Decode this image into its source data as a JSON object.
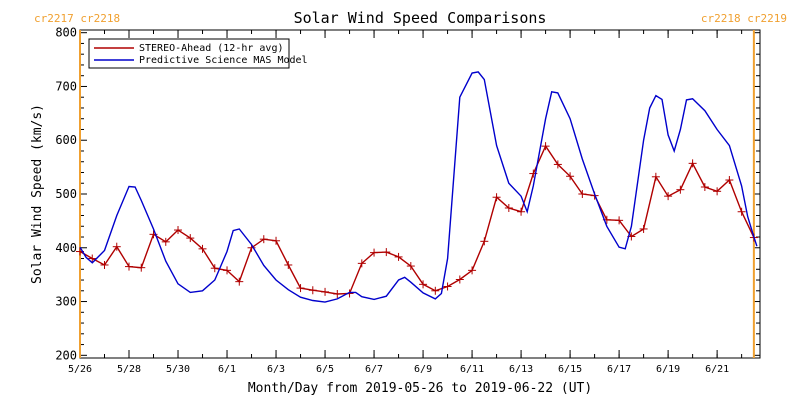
{
  "chart_data": {
    "type": "line",
    "title": "Solar Wind Speed Comparisons",
    "xlabel": "Month/Day from 2019-05-26 to 2019-06-22 (UT)",
    "ylabel": "Solar Wind Speed (km/s)",
    "xlim": [
      "2019-05-26",
      "2019-06-22T18:00"
    ],
    "ylim": [
      195,
      805
    ],
    "y_ticks": [
      200,
      300,
      400,
      500,
      600,
      700,
      800
    ],
    "x_ticks": [
      {
        "date": "2019-05-26",
        "label": "5/26"
      },
      {
        "date": "2019-05-28",
        "label": "5/28"
      },
      {
        "date": "2019-05-30",
        "label": "5/30"
      },
      {
        "date": "2019-06-01",
        "label": "6/1"
      },
      {
        "date": "2019-06-03",
        "label": "6/3"
      },
      {
        "date": "2019-06-05",
        "label": "6/5"
      },
      {
        "date": "2019-06-07",
        "label": "6/7"
      },
      {
        "date": "2019-06-09",
        "label": "6/9"
      },
      {
        "date": "2019-06-11",
        "label": "6/11"
      },
      {
        "date": "2019-06-13",
        "label": "6/13"
      },
      {
        "date": "2019-06-15",
        "label": "6/15"
      },
      {
        "date": "2019-06-17",
        "label": "6/17"
      },
      {
        "date": "2019-06-19",
        "label": "6/19"
      },
      {
        "date": "2019-06-21",
        "label": "6/21"
      }
    ],
    "grid": false,
    "legend_position": "top-left",
    "carrington_markers": [
      {
        "date": "2019-05-26",
        "label": "cr2217 cr2218",
        "label_side": "left",
        "color": "#f0a030"
      },
      {
        "date": "2019-06-22T12:00",
        "label": "cr2218 cr2219",
        "label_side": "right",
        "color": "#f0a030"
      }
    ],
    "series": [
      {
        "name": "STEREO-Ahead (12-hr avg)",
        "color": "#b00000",
        "marker": "plus",
        "points": [
          [
            "2019-05-26T00:00",
            393
          ],
          [
            "2019-05-26T12:00",
            380
          ],
          [
            "2019-05-27T00:00",
            368
          ],
          [
            "2019-05-27T12:00",
            402
          ],
          [
            "2019-05-28T00:00",
            365
          ],
          [
            "2019-05-28T12:00",
            363
          ],
          [
            "2019-05-29T00:00",
            425
          ],
          [
            "2019-05-29T12:00",
            411
          ],
          [
            "2019-05-30T00:00",
            433
          ],
          [
            "2019-05-30T12:00",
            418
          ],
          [
            "2019-05-31T00:00",
            398
          ],
          [
            "2019-05-31T12:00",
            362
          ],
          [
            "2019-06-01T00:00",
            358
          ],
          [
            "2019-06-01T12:00",
            337
          ],
          [
            "2019-06-02T00:00",
            400
          ],
          [
            "2019-06-02T12:00",
            416
          ],
          [
            "2019-06-03T00:00",
            413
          ],
          [
            "2019-06-03T12:00",
            368
          ],
          [
            "2019-06-04T00:00",
            325
          ],
          [
            "2019-06-04T12:00",
            321
          ],
          [
            "2019-06-05T00:00",
            318
          ],
          [
            "2019-06-05T12:00",
            314
          ],
          [
            "2019-06-06T00:00",
            315
          ],
          [
            "2019-06-06T12:00",
            371
          ],
          [
            "2019-06-07T00:00",
            391
          ],
          [
            "2019-06-07T12:00",
            392
          ],
          [
            "2019-06-08T00:00",
            383
          ],
          [
            "2019-06-08T12:00",
            366
          ],
          [
            "2019-06-09T00:00",
            332
          ],
          [
            "2019-06-09T12:00",
            320
          ],
          [
            "2019-06-10T00:00",
            328
          ],
          [
            "2019-06-10T12:00",
            341
          ],
          [
            "2019-06-11T00:00",
            358
          ],
          [
            "2019-06-11T12:00",
            412
          ],
          [
            "2019-06-12T00:00",
            494
          ],
          [
            "2019-06-12T12:00",
            474
          ],
          [
            "2019-06-13T00:00",
            467
          ],
          [
            "2019-06-13T12:00",
            538
          ],
          [
            "2019-06-14T00:00",
            589
          ],
          [
            "2019-06-14T12:00",
            555
          ],
          [
            "2019-06-15T00:00",
            533
          ],
          [
            "2019-06-15T12:00",
            500
          ],
          [
            "2019-06-16T00:00",
            497
          ],
          [
            "2019-06-16T12:00",
            452
          ],
          [
            "2019-06-17T00:00",
            451
          ],
          [
            "2019-06-17T12:00",
            421
          ],
          [
            "2019-06-18T00:00",
            435
          ],
          [
            "2019-06-18T12:00",
            532
          ],
          [
            "2019-06-19T00:00",
            496
          ],
          [
            "2019-06-19T12:00",
            508
          ],
          [
            "2019-06-20T00:00",
            557
          ],
          [
            "2019-06-20T12:00",
            513
          ],
          [
            "2019-06-21T00:00",
            505
          ],
          [
            "2019-06-21T12:00",
            526
          ],
          [
            "2019-06-22T00:00",
            467
          ],
          [
            "2019-06-22T12:00",
            419
          ]
        ]
      },
      {
        "name": "Predictive Science MAS Model",
        "color": "#0000cc",
        "marker": "none",
        "points": [
          [
            "2019-05-26T00:00",
            401
          ],
          [
            "2019-05-26T06:00",
            382
          ],
          [
            "2019-05-26T12:00",
            372
          ],
          [
            "2019-05-27T00:00",
            395
          ],
          [
            "2019-05-27T12:00",
            460
          ],
          [
            "2019-05-28T00:00",
            514
          ],
          [
            "2019-05-28T06:00",
            513
          ],
          [
            "2019-05-28T12:00",
            488
          ],
          [
            "2019-05-29T00:00",
            435
          ],
          [
            "2019-05-29T12:00",
            375
          ],
          [
            "2019-05-30T00:00",
            333
          ],
          [
            "2019-05-30T12:00",
            317
          ],
          [
            "2019-05-31T00:00",
            320
          ],
          [
            "2019-05-31T12:00",
            340
          ],
          [
            "2019-06-01T00:00",
            393
          ],
          [
            "2019-06-01T06:00",
            432
          ],
          [
            "2019-06-01T12:00",
            435
          ],
          [
            "2019-06-02T00:00",
            406
          ],
          [
            "2019-06-02T12:00",
            367
          ],
          [
            "2019-06-03T00:00",
            340
          ],
          [
            "2019-06-03T12:00",
            322
          ],
          [
            "2019-06-04T00:00",
            308
          ],
          [
            "2019-06-04T12:00",
            302
          ],
          [
            "2019-06-05T00:00",
            299
          ],
          [
            "2019-06-05T12:00",
            305
          ],
          [
            "2019-06-06T00:00",
            317
          ],
          [
            "2019-06-06T06:00",
            317
          ],
          [
            "2019-06-06T12:00",
            309
          ],
          [
            "2019-06-07T00:00",
            304
          ],
          [
            "2019-06-07T12:00",
            310
          ],
          [
            "2019-06-08T00:00",
            340
          ],
          [
            "2019-06-08T06:00",
            345
          ],
          [
            "2019-06-08T12:00",
            336
          ],
          [
            "2019-06-09T00:00",
            316
          ],
          [
            "2019-06-09T12:00",
            305
          ],
          [
            "2019-06-09T18:00",
            315
          ],
          [
            "2019-06-10T00:00",
            380
          ],
          [
            "2019-06-10T12:00",
            680
          ],
          [
            "2019-06-11T00:00",
            725
          ],
          [
            "2019-06-11T06:00",
            727
          ],
          [
            "2019-06-11T12:00",
            713
          ],
          [
            "2019-06-12T00:00",
            590
          ],
          [
            "2019-06-12T12:00",
            520
          ],
          [
            "2019-06-13T00:00",
            496
          ],
          [
            "2019-06-13T06:00",
            467
          ],
          [
            "2019-06-13T12:00",
            515
          ],
          [
            "2019-06-14T00:00",
            640
          ],
          [
            "2019-06-14T06:00",
            690
          ],
          [
            "2019-06-14T12:00",
            688
          ],
          [
            "2019-06-15T00:00",
            640
          ],
          [
            "2019-06-15T12:00",
            565
          ],
          [
            "2019-06-16T00:00",
            500
          ],
          [
            "2019-06-16T12:00",
            440
          ],
          [
            "2019-06-17T00:00",
            401
          ],
          [
            "2019-06-17T06:00",
            398
          ],
          [
            "2019-06-17T12:00",
            440
          ],
          [
            "2019-06-18T00:00",
            600
          ],
          [
            "2019-06-18T06:00",
            660
          ],
          [
            "2019-06-18T12:00",
            683
          ],
          [
            "2019-06-18T18:00",
            676
          ],
          [
            "2019-06-19T00:00",
            610
          ],
          [
            "2019-06-19T06:00",
            580
          ],
          [
            "2019-06-19T12:00",
            620
          ],
          [
            "2019-06-19T18:00",
            675
          ],
          [
            "2019-06-20T00:00",
            677
          ],
          [
            "2019-06-20T12:00",
            655
          ],
          [
            "2019-06-21T00:00",
            620
          ],
          [
            "2019-06-21T12:00",
            590
          ],
          [
            "2019-06-22T00:00",
            515
          ],
          [
            "2019-06-22T06:00",
            458
          ],
          [
            "2019-06-22T12:00",
            420
          ],
          [
            "2019-06-22T15:00",
            403
          ]
        ]
      }
    ]
  }
}
